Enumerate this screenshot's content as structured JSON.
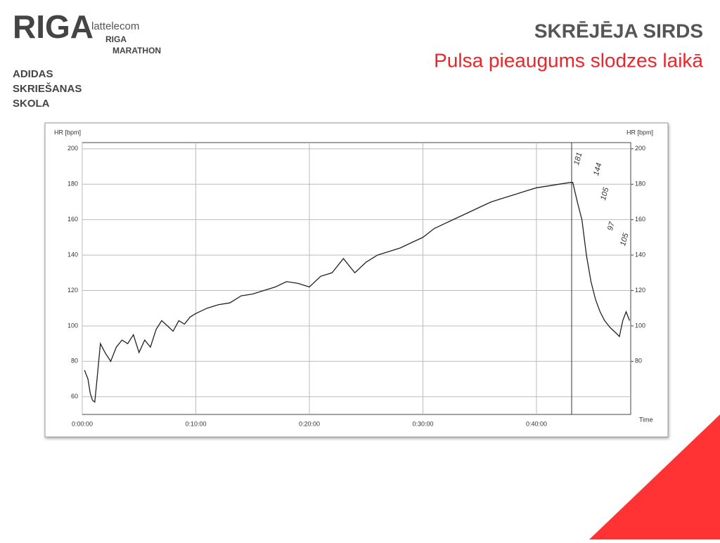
{
  "header": {
    "logo": "RIGA",
    "sponsor": "lattelecom",
    "event": "RIGA",
    "event_sub": "MARATHON",
    "school": [
      "ADIDAS",
      "SKRIEŠANAS",
      "SKOLA"
    ],
    "title": "SKRĒJĒJA SIRDS",
    "subtitle": "Pulsa pieaugums slodzes laikā"
  },
  "chart_data": {
    "type": "line",
    "ylabel": "HR [bpm]",
    "y2label": "HR [bpm]",
    "xlabel": "Time",
    "color": "#222222",
    "grid": true,
    "x": [
      0.2,
      0.5,
      0.7,
      0.9,
      1.1,
      1.3,
      1.6,
      2,
      2.5,
      3,
      3.5,
      4,
      4.5,
      5,
      5.5,
      6,
      6.5,
      7,
      7.5,
      8,
      8.5,
      9,
      9.5,
      10,
      11,
      12,
      13,
      14,
      15,
      16,
      17,
      18,
      19,
      20,
      21,
      22,
      23,
      24,
      25,
      26,
      27,
      28,
      29,
      30,
      31,
      32,
      33,
      34,
      35,
      36,
      37,
      38,
      39,
      40,
      41,
      42,
      43,
      43.2,
      43.6,
      44,
      44.4,
      44.8,
      45.2,
      45.6,
      46,
      46.5,
      47,
      47.3,
      47.6,
      47.9,
      48.2
    ],
    "values": [
      75,
      70,
      62,
      58,
      57,
      70,
      90,
      85,
      80,
      88,
      92,
      90,
      95,
      85,
      92,
      88,
      98,
      103,
      100,
      97,
      103,
      101,
      105,
      107,
      110,
      112,
      113,
      117,
      118,
      120,
      122,
      125,
      124,
      122,
      128,
      130,
      138,
      130,
      136,
      140,
      142,
      144,
      147,
      150,
      155,
      158,
      161,
      164,
      167,
      170,
      172,
      174,
      176,
      178,
      179,
      180,
      181,
      181,
      170,
      160,
      140,
      125,
      115,
      108,
      103,
      99,
      96,
      94,
      103,
      108,
      103
    ],
    "xlim": [
      0,
      48.3
    ],
    "ylim": [
      50,
      203.5
    ],
    "xticks": [
      {
        "value": 0,
        "label": "0:00:00"
      },
      {
        "value": 10,
        "label": "0:10:00"
      },
      {
        "value": 20,
        "label": "0:20:00"
      },
      {
        "value": 30,
        "label": "0:30:00"
      },
      {
        "value": 40,
        "label": "0:40:00"
      }
    ],
    "yticks": [
      60,
      80,
      100,
      120,
      140,
      160,
      180,
      200
    ],
    "y2lim": [
      50,
      203.5
    ],
    "y2ticks": [
      80,
      100,
      120,
      140,
      160,
      180,
      200
    ],
    "annotations": [
      "181",
      "144",
      "105",
      "97",
      "105"
    ]
  }
}
